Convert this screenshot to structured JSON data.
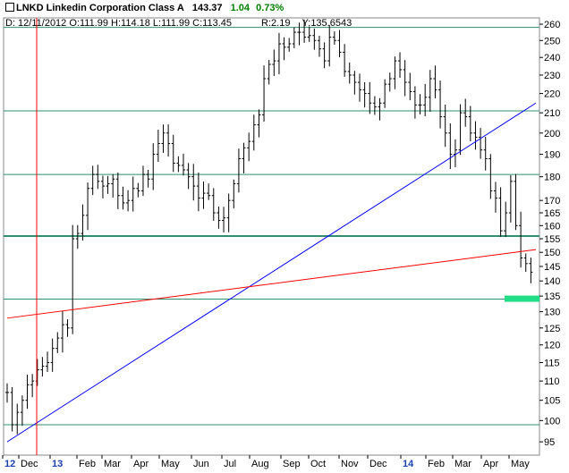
{
  "header": {
    "checkbox_icon": "checkbox-icon",
    "symbol_line": "LNKD Linkedin Corporation Class A",
    "last_price": "143.37",
    "change": "1.04",
    "change_pct": "0.73%",
    "ohlc_line": "D: 12/11/2012 O:111.99 H:114.18 L:111.99 C:113.45",
    "r_value": "R:2.19",
    "y_value": "Y:135.6543"
  },
  "chart_data": {
    "type": "bar",
    "subtype": "ohlc",
    "title": "",
    "xlabel": "",
    "ylabel": "",
    "ylim": [
      92,
      264
    ],
    "y_ticks": [
      95,
      100,
      105,
      110,
      115,
      120,
      125,
      130,
      135,
      140,
      145,
      150,
      155,
      160,
      165,
      170,
      180,
      190,
      200,
      210,
      220,
      230,
      240,
      250,
      260
    ],
    "x_labels": [
      "12",
      "Dec",
      "13",
      "Feb",
      "Mar",
      "Apr",
      "May",
      "Jun",
      "Jul",
      "Aug",
      "Sep",
      "Oct",
      "Nov",
      "Dec",
      "14",
      "Feb",
      "Mar",
      "Apr",
      "May"
    ],
    "year_labels": [
      "12",
      "13",
      "14"
    ],
    "horizontal_levels": [
      99,
      134,
      156,
      181,
      211,
      258
    ],
    "highlighted_level": 156,
    "trendlines": [
      {
        "color": "#0000ff",
        "from": [
          0,
          95
        ],
        "to": [
          138,
          215
        ]
      },
      {
        "color": "#ff0000",
        "from": [
          0,
          128
        ],
        "to": [
          138,
          151
        ]
      }
    ],
    "cursor_date": "12/11/2012",
    "price_marker": {
      "value": 134,
      "color": "#22dd88"
    },
    "weekly_closes": [
      107,
      99,
      102,
      105,
      109,
      110,
      113,
      114,
      115,
      119,
      122,
      126,
      125,
      155,
      157,
      164,
      175,
      181,
      178,
      176,
      177,
      179,
      172,
      169,
      170,
      175,
      174,
      181,
      179,
      190,
      195,
      200,
      195,
      186,
      185,
      183,
      180,
      176,
      171,
      173,
      172,
      165,
      162,
      163,
      170,
      177,
      188,
      193,
      196,
      204,
      209,
      228,
      236,
      238,
      248,
      246,
      248,
      255,
      255,
      252,
      253,
      250,
      245,
      238,
      252,
      250,
      243,
      232,
      230,
      226,
      222,
      220,
      215,
      213,
      215,
      225,
      228,
      238,
      233,
      226,
      221,
      214,
      214,
      218,
      228,
      222,
      208,
      200,
      190,
      192,
      210,
      208,
      200,
      198,
      192,
      188,
      174,
      171,
      158,
      165,
      178,
      160,
      148,
      146,
      143
    ],
    "week_count": 138
  }
}
